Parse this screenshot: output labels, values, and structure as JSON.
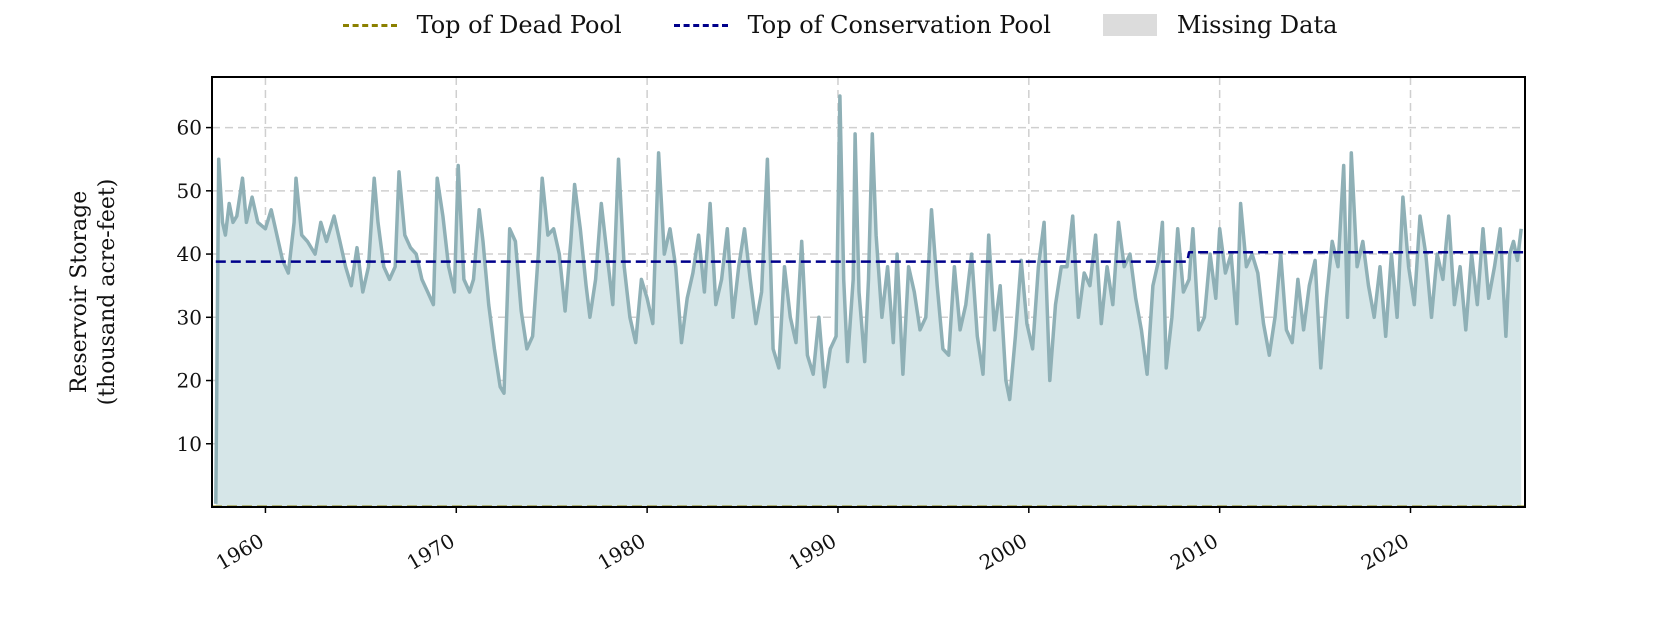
{
  "legend": [
    {
      "label": "Top of Dead Pool",
      "color": "#8b8000",
      "style": "dashed-line"
    },
    {
      "label": "Top of Conservation Pool",
      "color": "#00008b",
      "style": "dashed-line"
    },
    {
      "label": "Missing Data",
      "color": "#dcdcdc",
      "style": "box"
    }
  ],
  "chart_data": {
    "type": "area",
    "title": "",
    "ylabel": [
      "Reservoir Storage",
      "(thousand acre-feet)"
    ],
    "xlabel": "",
    "xlim": [
      1957.2,
      2026.0
    ],
    "ylim": [
      0,
      68
    ],
    "x_ticks": [
      1960,
      1970,
      1980,
      1990,
      2000,
      2010,
      2020
    ],
    "x_tick_labels": [
      "1960",
      "1970",
      "1980",
      "1990",
      "2000",
      "2010",
      "2020"
    ],
    "y_ticks": [
      10,
      20,
      30,
      40,
      50,
      60
    ],
    "y_tick_labels": [
      "10",
      "20",
      "30",
      "40",
      "50",
      "60"
    ],
    "grid": true,
    "legend_position": "top-center",
    "series": [
      {
        "name": "",
        "color": "#8fb0b6",
        "fill": "#d6e6e8",
        "points": [
          [
            1957.4,
            0.5
          ],
          [
            1957.55,
            55
          ],
          [
            1957.75,
            45
          ],
          [
            1957.9,
            43
          ],
          [
            1958.1,
            48
          ],
          [
            1958.3,
            45
          ],
          [
            1958.5,
            46
          ],
          [
            1958.8,
            52
          ],
          [
            1959.0,
            45
          ],
          [
            1959.3,
            49
          ],
          [
            1959.6,
            45
          ],
          [
            1960.0,
            44
          ],
          [
            1960.3,
            47
          ],
          [
            1960.6,
            43
          ],
          [
            1960.9,
            39
          ],
          [
            1961.2,
            37
          ],
          [
            1961.5,
            45
          ],
          [
            1961.6,
            52
          ],
          [
            1961.9,
            43
          ],
          [
            1962.2,
            42
          ],
          [
            1962.6,
            40
          ],
          [
            1962.9,
            45
          ],
          [
            1963.2,
            42
          ],
          [
            1963.6,
            46
          ],
          [
            1963.9,
            42
          ],
          [
            1964.2,
            38
          ],
          [
            1964.5,
            35
          ],
          [
            1964.8,
            41
          ],
          [
            1965.1,
            34
          ],
          [
            1965.4,
            38
          ],
          [
            1965.7,
            52
          ],
          [
            1965.9,
            45
          ],
          [
            1966.2,
            38
          ],
          [
            1966.5,
            36
          ],
          [
            1966.8,
            38
          ],
          [
            1967.0,
            53
          ],
          [
            1967.3,
            43
          ],
          [
            1967.6,
            41
          ],
          [
            1967.9,
            40
          ],
          [
            1968.2,
            36
          ],
          [
            1968.5,
            34
          ],
          [
            1968.8,
            32
          ],
          [
            1969.0,
            52
          ],
          [
            1969.3,
            46
          ],
          [
            1969.6,
            38
          ],
          [
            1969.9,
            34
          ],
          [
            1970.1,
            54
          ],
          [
            1970.4,
            36
          ],
          [
            1970.7,
            34
          ],
          [
            1970.9,
            36
          ],
          [
            1971.2,
            47
          ],
          [
            1971.4,
            42
          ],
          [
            1971.7,
            32
          ],
          [
            1972.0,
            25
          ],
          [
            1972.3,
            19
          ],
          [
            1972.5,
            18
          ],
          [
            1972.8,
            44
          ],
          [
            1973.1,
            42
          ],
          [
            1973.4,
            31
          ],
          [
            1973.7,
            25
          ],
          [
            1974.0,
            27
          ],
          [
            1974.3,
            40
          ],
          [
            1974.5,
            52
          ],
          [
            1974.8,
            43
          ],
          [
            1975.1,
            44
          ],
          [
            1975.4,
            40
          ],
          [
            1975.7,
            31
          ],
          [
            1976.0,
            42
          ],
          [
            1976.2,
            51
          ],
          [
            1976.5,
            44
          ],
          [
            1976.8,
            35
          ],
          [
            1977.0,
            30
          ],
          [
            1977.3,
            36
          ],
          [
            1977.6,
            48
          ],
          [
            1977.9,
            40
          ],
          [
            1978.2,
            32
          ],
          [
            1978.5,
            55
          ],
          [
            1978.8,
            38
          ],
          [
            1979.1,
            30
          ],
          [
            1979.4,
            26
          ],
          [
            1979.7,
            36
          ],
          [
            1980.0,
            33
          ],
          [
            1980.3,
            29
          ],
          [
            1980.6,
            56
          ],
          [
            1980.9,
            40
          ],
          [
            1981.2,
            44
          ],
          [
            1981.5,
            38
          ],
          [
            1981.8,
            26
          ],
          [
            1982.1,
            33
          ],
          [
            1982.4,
            37
          ],
          [
            1982.7,
            43
          ],
          [
            1983.0,
            34
          ],
          [
            1983.3,
            48
          ],
          [
            1983.6,
            32
          ],
          [
            1983.9,
            36
          ],
          [
            1984.2,
            44
          ],
          [
            1984.5,
            30
          ],
          [
            1984.8,
            38
          ],
          [
            1985.1,
            44
          ],
          [
            1985.4,
            36
          ],
          [
            1985.7,
            29
          ],
          [
            1986.0,
            34
          ],
          [
            1986.3,
            55
          ],
          [
            1986.6,
            25
          ],
          [
            1986.9,
            22
          ],
          [
            1987.2,
            38
          ],
          [
            1987.5,
            30
          ],
          [
            1987.8,
            26
          ],
          [
            1988.1,
            42
          ],
          [
            1988.4,
            24
          ],
          [
            1988.7,
            21
          ],
          [
            1989.0,
            30
          ],
          [
            1989.3,
            19
          ],
          [
            1989.6,
            25
          ],
          [
            1989.9,
            27
          ],
          [
            1990.1,
            65
          ],
          [
            1990.3,
            36
          ],
          [
            1990.5,
            23
          ],
          [
            1990.8,
            36
          ],
          [
            1990.9,
            59
          ],
          [
            1991.1,
            34
          ],
          [
            1991.4,
            23
          ],
          [
            1991.6,
            36
          ],
          [
            1991.8,
            59
          ],
          [
            1992.0,
            43
          ],
          [
            1992.3,
            30
          ],
          [
            1992.6,
            38
          ],
          [
            1992.9,
            26
          ],
          [
            1993.1,
            40
          ],
          [
            1993.4,
            21
          ],
          [
            1993.7,
            38
          ],
          [
            1994.0,
            34
          ],
          [
            1994.3,
            28
          ],
          [
            1994.6,
            30
          ],
          [
            1994.9,
            47
          ],
          [
            1995.2,
            35
          ],
          [
            1995.5,
            25
          ],
          [
            1995.8,
            24
          ],
          [
            1996.1,
            38
          ],
          [
            1996.4,
            28
          ],
          [
            1996.7,
            32
          ],
          [
            1997.0,
            40
          ],
          [
            1997.3,
            27
          ],
          [
            1997.6,
            21
          ],
          [
            1997.9,
            43
          ],
          [
            1998.2,
            28
          ],
          [
            1998.5,
            35
          ],
          [
            1998.8,
            20
          ],
          [
            1999.0,
            17
          ],
          [
            1999.3,
            27
          ],
          [
            1999.6,
            39
          ],
          [
            1999.9,
            29
          ],
          [
            2000.2,
            25
          ],
          [
            2000.5,
            38
          ],
          [
            2000.8,
            45
          ],
          [
            2001.1,
            20
          ],
          [
            2001.4,
            32
          ],
          [
            2001.7,
            38
          ],
          [
            2002.0,
            38
          ],
          [
            2002.3,
            46
          ],
          [
            2002.6,
            30
          ],
          [
            2002.9,
            37
          ],
          [
            2003.2,
            35
          ],
          [
            2003.5,
            43
          ],
          [
            2003.8,
            29
          ],
          [
            2004.1,
            38
          ],
          [
            2004.4,
            32
          ],
          [
            2004.7,
            45
          ],
          [
            2005.0,
            38
          ],
          [
            2005.3,
            40
          ],
          [
            2005.6,
            33
          ],
          [
            2005.9,
            28
          ],
          [
            2006.2,
            21
          ],
          [
            2006.5,
            35
          ],
          [
            2006.8,
            39
          ],
          [
            2007.0,
            45
          ],
          [
            2007.2,
            22
          ],
          [
            2007.5,
            30
          ],
          [
            2007.8,
            44
          ],
          [
            2008.1,
            34
          ],
          [
            2008.4,
            36
          ],
          [
            2008.6,
            44
          ],
          [
            2008.9,
            28
          ],
          [
            2009.2,
            30
          ],
          [
            2009.5,
            40
          ],
          [
            2009.8,
            33
          ],
          [
            2010.0,
            44
          ],
          [
            2010.3,
            37
          ],
          [
            2010.6,
            40
          ],
          [
            2010.9,
            29
          ],
          [
            2011.1,
            48
          ],
          [
            2011.4,
            38
          ],
          [
            2011.7,
            40
          ],
          [
            2012.0,
            37
          ],
          [
            2012.3,
            29
          ],
          [
            2012.6,
            24
          ],
          [
            2012.9,
            30
          ],
          [
            2013.2,
            40
          ],
          [
            2013.5,
            28
          ],
          [
            2013.8,
            26
          ],
          [
            2014.1,
            36
          ],
          [
            2014.4,
            28
          ],
          [
            2014.7,
            35
          ],
          [
            2015.0,
            39
          ],
          [
            2015.3,
            22
          ],
          [
            2015.6,
            33
          ],
          [
            2015.9,
            42
          ],
          [
            2016.2,
            38
          ],
          [
            2016.5,
            54
          ],
          [
            2016.7,
            30
          ],
          [
            2016.9,
            56
          ],
          [
            2017.2,
            38
          ],
          [
            2017.5,
            42
          ],
          [
            2017.8,
            35
          ],
          [
            2018.1,
            30
          ],
          [
            2018.4,
            38
          ],
          [
            2018.7,
            27
          ],
          [
            2019.0,
            40
          ],
          [
            2019.3,
            30
          ],
          [
            2019.6,
            49
          ],
          [
            2019.9,
            38
          ],
          [
            2020.2,
            32
          ],
          [
            2020.5,
            46
          ],
          [
            2020.8,
            40
          ],
          [
            2021.1,
            30
          ],
          [
            2021.4,
            40
          ],
          [
            2021.7,
            36
          ],
          [
            2022.0,
            46
          ],
          [
            2022.3,
            32
          ],
          [
            2022.6,
            38
          ],
          [
            2022.9,
            28
          ],
          [
            2023.2,
            40
          ],
          [
            2023.5,
            32
          ],
          [
            2023.8,
            44
          ],
          [
            2024.1,
            33
          ],
          [
            2024.4,
            38
          ],
          [
            2024.7,
            44
          ],
          [
            2025.0,
            27
          ],
          [
            2025.2,
            40
          ],
          [
            2025.4,
            42
          ],
          [
            2025.6,
            39
          ],
          [
            2025.8,
            44
          ]
        ]
      },
      {
        "name": "Top of Conservation Pool",
        "color": "#00008b",
        "style": "dashed",
        "points": [
          [
            1957.4,
            38.8
          ],
          [
            2008.3,
            38.8
          ],
          [
            2008.4,
            40.3
          ],
          [
            2025.9,
            40.3
          ]
        ]
      },
      {
        "name": "Top of Dead Pool",
        "color": "#8b8000",
        "style": "dashed",
        "points": [
          [
            1957.2,
            0.05
          ],
          [
            2026.0,
            0.05
          ]
        ]
      }
    ]
  }
}
